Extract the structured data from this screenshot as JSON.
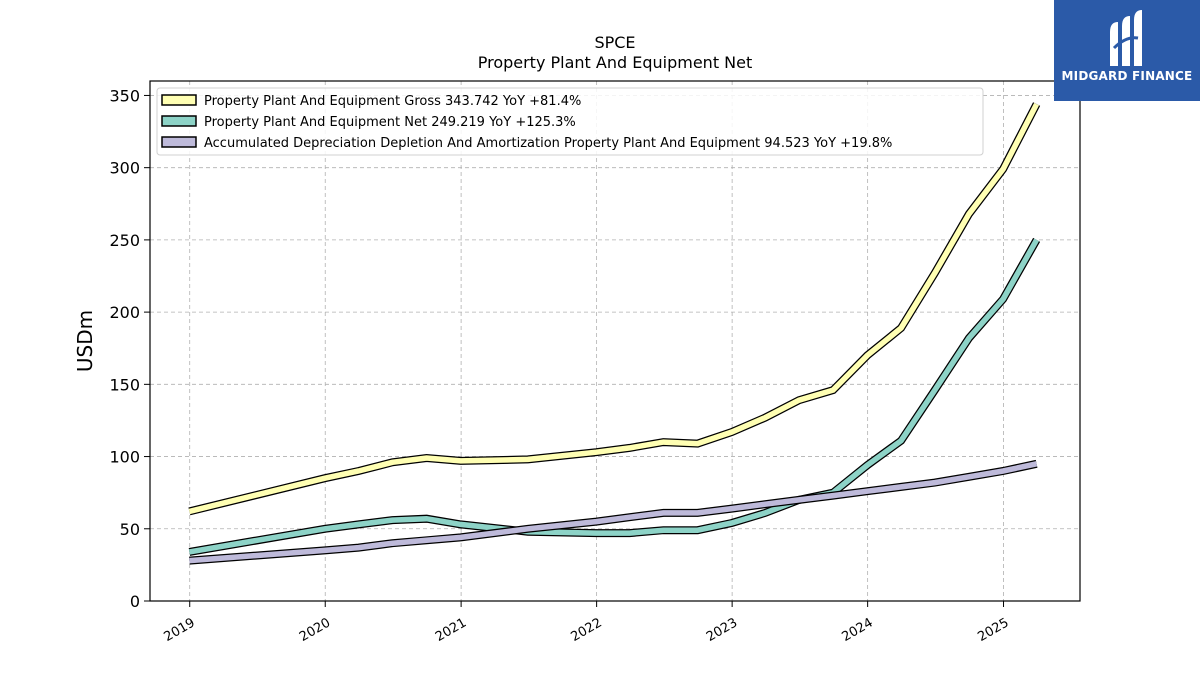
{
  "logo": {
    "text": "MIDGARD FINANCE",
    "bg_color": "#2b5aa8",
    "icon": "midgard-logo-icon"
  },
  "chart_data": {
    "type": "line",
    "title": "SPCE",
    "subtitle": "Property Plant And Equipment Net",
    "ylabel": "USDm",
    "xlabel": "",
    "ylim": [
      0,
      360
    ],
    "yticks": [
      0,
      50,
      100,
      150,
      200,
      250,
      300,
      350
    ],
    "xlim": [
      "2018-09-16",
      "2025-07-26"
    ],
    "xticks": [
      {
        "date": "2019-01-01",
        "label": "2019"
      },
      {
        "date": "2020-01-01",
        "label": "2020"
      },
      {
        "date": "2021-01-01",
        "label": "2021"
      },
      {
        "date": "2022-01-01",
        "label": "2022"
      },
      {
        "date": "2023-01-01",
        "label": "2023"
      },
      {
        "date": "2024-01-01",
        "label": "2024"
      },
      {
        "date": "2025-01-01",
        "label": "2025"
      }
    ],
    "grid": true,
    "legend_position": "upper-left",
    "x": [
      "2018-12-31",
      "2019-12-31",
      "2020-03-31",
      "2020-06-30",
      "2020-09-30",
      "2020-12-31",
      "2021-06-30",
      "2021-12-31",
      "2022-03-31",
      "2022-06-30",
      "2022-09-30",
      "2022-12-31",
      "2023-03-31",
      "2023-06-30",
      "2023-09-30",
      "2023-12-31",
      "2024-03-31",
      "2024-06-30",
      "2024-09-30",
      "2024-12-31",
      "2025-03-31"
    ],
    "series": [
      {
        "name": "Property Plant And Equipment Gross  343.742 YoY +81.4%",
        "color": "#ffffb3",
        "values": [
          62,
          85,
          90,
          96,
          99,
          97,
          98,
          103,
          106,
          110,
          109,
          117,
          127,
          139,
          146,
          170,
          189,
          227,
          268,
          299,
          344
        ]
      },
      {
        "name": "Property Plant And Equipment Net  249.219 YoY +125.3%",
        "color": "#8dd3c7",
        "values": [
          34,
          50,
          53,
          56,
          57,
          53,
          48,
          47,
          47,
          49,
          49,
          54,
          61,
          70,
          75,
          94,
          111,
          146,
          182,
          209,
          250
        ]
      },
      {
        "name": "Accumulated Depreciation Depletion And Amortization Property Plant And Equipment  94.523 YoY +19.8%",
        "color": "#bebada",
        "values": [
          28,
          35,
          37,
          40,
          42,
          44,
          50,
          55,
          58,
          61,
          61,
          64,
          67,
          70,
          73,
          76,
          79,
          82,
          86,
          90,
          95
        ]
      }
    ]
  }
}
